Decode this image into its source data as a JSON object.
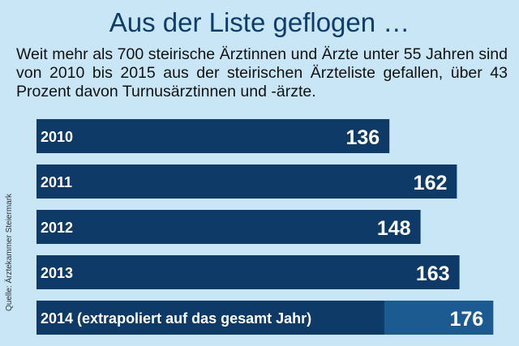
{
  "title": "Aus der Liste geflogen …",
  "subtitle": "Weit mehr als 700 steirische Ärztinnen und Ärzte unter 55 Jahren sind von 2010 bis 2015 aus der steirischen Ärzteliste gefallen, über 43 Prozent davon Turnusärztinnen und -ärzte.",
  "source": "Quelle: Ärztekammer Steiermark",
  "colors": {
    "background": "#c9e6f7",
    "bar": "#0d3a66",
    "bar_extrapolated": "#1c5b92",
    "title": "#0d3d6b",
    "label": "#ffffff"
  },
  "chart_data": {
    "type": "bar",
    "orientation": "horizontal",
    "categories": [
      "2010",
      "2011",
      "2012",
      "2013",
      "2014 (extrapoliert auf das gesamt Jahr)"
    ],
    "values": [
      136,
      162,
      148,
      163,
      176
    ],
    "extrapolated_from_value": 134,
    "title": "Aus der Liste geflogen …",
    "xlabel": "",
    "ylabel": "",
    "grid": false,
    "legend": "none"
  }
}
